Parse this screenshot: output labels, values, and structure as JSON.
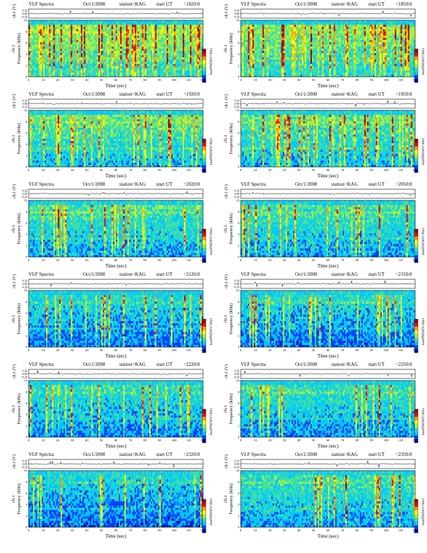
{
  "figure": {
    "header_title": "VLF Spectra",
    "date": "Oct/1/2008",
    "station": "station=KAG",
    "start_prefix": "start  UT",
    "waveform_ylabel": "ch.1 (V)",
    "waveform_ticks": [
      "0.20",
      "0.00",
      "-0.20"
    ],
    "spec_ylabel_prefix": "ch.1",
    "spec_ylabel": "Frequency  (kHz)",
    "y_ticks": [
      "0",
      "2",
      "4",
      "6",
      "8",
      "10"
    ],
    "x_ticks": [
      "0",
      "10",
      "20",
      "30",
      "40",
      "50",
      "60",
      "70",
      "80",
      "90",
      "100",
      "110",
      "120"
    ],
    "xlabel": "Time  (sec)",
    "colorbar_label": "log(PSD)(V²/Hz)",
    "colorbar_ticks": [
      "-",
      "-"
    ],
    "colormap": [
      "#000080",
      "#0044ff",
      "#00c8ff",
      "#40e0a0",
      "#a8f040",
      "#ffff00",
      "#ffa000",
      "#ff0000",
      "#a00000"
    ]
  },
  "chart_data": [
    {
      "type": "heatmap",
      "start_ut": "=1820:0",
      "xlabel": "Time  (sec)",
      "ylabel": "Frequency  (kHz)",
      "xlim": [
        0,
        120
      ],
      "ylim": [
        0,
        10
      ],
      "intensity": 0.62,
      "bg": 0.62,
      "seed": 11
    },
    {
      "type": "heatmap",
      "start_ut": "=1850:0",
      "xlabel": "Time  (sec)",
      "ylabel": "Frequency  (kHz)",
      "xlim": [
        0,
        120
      ],
      "ylim": [
        0,
        10
      ],
      "intensity": 0.48,
      "bg": 0.58,
      "seed": 23
    },
    {
      "type": "heatmap",
      "start_ut": "=1920:0",
      "xlabel": "Time  (sec)",
      "ylabel": "Frequency  (kHz)",
      "xlim": [
        0,
        120
      ],
      "ylim": [
        0,
        10
      ],
      "intensity": 0.42,
      "bg": 0.52,
      "seed": 37
    },
    {
      "type": "heatmap",
      "start_ut": "=1950:0",
      "xlabel": "Time  (sec)",
      "ylabel": "Frequency  (kHz)",
      "xlim": [
        0,
        120
      ],
      "ylim": [
        0,
        10
      ],
      "intensity": 0.46,
      "bg": 0.5,
      "seed": 41
    },
    {
      "type": "heatmap",
      "start_ut": "=2020:0",
      "xlabel": "Time  (sec)",
      "ylabel": "Frequency  (kHz)",
      "xlim": [
        0,
        120
      ],
      "ylim": [
        0,
        10
      ],
      "intensity": 0.32,
      "bg": 0.45,
      "seed": 53
    },
    {
      "type": "heatmap",
      "start_ut": "=2050:0",
      "xlabel": "Time  (sec)",
      "ylabel": "Frequency  (kHz)",
      "xlim": [
        0,
        120
      ],
      "ylim": [
        0,
        10
      ],
      "intensity": 0.36,
      "bg": 0.45,
      "seed": 67
    },
    {
      "type": "heatmap",
      "start_ut": "=2120:0",
      "xlabel": "Time  (sec)",
      "ylabel": "Frequency  (kHz)",
      "xlim": [
        0,
        120
      ],
      "ylim": [
        0,
        10
      ],
      "intensity": 0.3,
      "bg": 0.36,
      "seed": 71
    },
    {
      "type": "heatmap",
      "start_ut": "=2150:0",
      "xlabel": "Time  (sec)",
      "ylabel": "Frequency  (kHz)",
      "xlim": [
        0,
        120
      ],
      "ylim": [
        0,
        10
      ],
      "intensity": 0.3,
      "bg": 0.35,
      "seed": 83
    },
    {
      "type": "heatmap",
      "start_ut": "=2220:0",
      "xlabel": "Time  (sec)",
      "ylabel": "Frequency  (kHz)",
      "xlim": [
        0,
        120
      ],
      "ylim": [
        0,
        10
      ],
      "intensity": 0.34,
      "bg": 0.4,
      "seed": 97
    },
    {
      "type": "heatmap",
      "start_ut": "=2250:0",
      "xlabel": "Time  (sec)",
      "ylabel": "Frequency  (kHz)",
      "xlim": [
        0,
        120
      ],
      "ylim": [
        0,
        10
      ],
      "intensity": 0.4,
      "bg": 0.42,
      "seed": 101
    },
    {
      "type": "heatmap",
      "start_ut": "=2320:0",
      "xlabel": "Time  (sec)",
      "ylabel": "Frequency  (kHz)",
      "xlim": [
        0,
        120
      ],
      "ylim": [
        0,
        10
      ],
      "intensity": 0.33,
      "bg": 0.34,
      "seed": 113
    },
    {
      "type": "heatmap",
      "start_ut": "=2350:0",
      "xlabel": "Time  (sec)",
      "ylabel": "Frequency  (kHz)",
      "xlim": [
        0,
        120
      ],
      "ylim": [
        0,
        10
      ],
      "intensity": 0.38,
      "bg": 0.44,
      "seed": 127
    }
  ]
}
